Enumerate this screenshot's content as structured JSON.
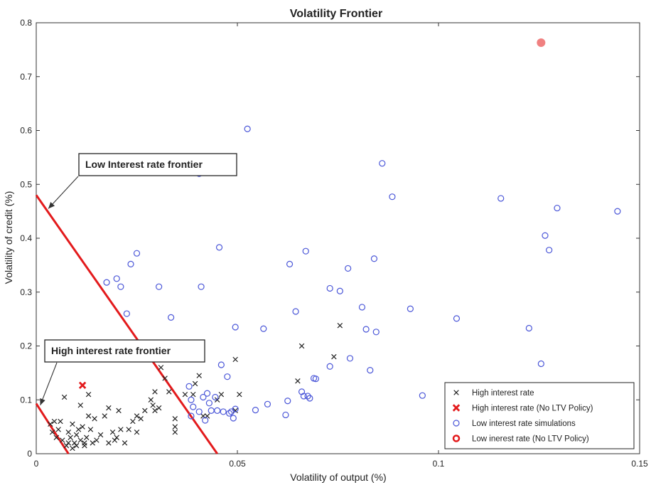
{
  "chart_data": {
    "type": "scatter",
    "title": "Volatility Frontier",
    "xlabel": "Volatility of output (%)",
    "ylabel": "Volatility of credit (%)",
    "xlim": [
      0,
      0.15
    ],
    "ylim": [
      0,
      0.8
    ],
    "xticks": [
      0,
      0.05,
      0.1,
      0.15
    ],
    "xtick_labels": [
      "0",
      "0.05",
      "0.1",
      "0.15"
    ],
    "yticks": [
      0,
      0.1,
      0.2,
      0.3,
      0.4,
      0.5,
      0.6,
      0.7,
      0.8
    ],
    "ytick_labels": [
      "0",
      "0.1",
      "0.2",
      "0.3",
      "0.4",
      "0.5",
      "0.6",
      "0.7",
      "0.8"
    ],
    "grid": false,
    "legend_position": "bottom-right",
    "series": [
      {
        "name": "High interest rate",
        "marker": "x",
        "color": "#222222",
        "points": [
          [
            0.0035,
            0.055
          ],
          [
            0.004,
            0.04
          ],
          [
            0.0045,
            0.06
          ],
          [
            0.005,
            0.03
          ],
          [
            0.0055,
            0.045
          ],
          [
            0.006,
            0.06
          ],
          [
            0.0065,
            0.025
          ],
          [
            0.007,
            0.105
          ],
          [
            0.0075,
            0.015
          ],
          [
            0.008,
            0.04
          ],
          [
            0.008,
            0.02
          ],
          [
            0.0085,
            0.03
          ],
          [
            0.009,
            0.01
          ],
          [
            0.009,
            0.055
          ],
          [
            0.0095,
            0.02
          ],
          [
            0.01,
            0.035
          ],
          [
            0.01,
            0.015
          ],
          [
            0.0105,
            0.045
          ],
          [
            0.011,
            0.025
          ],
          [
            0.011,
            0.09
          ],
          [
            0.0115,
            0.05
          ],
          [
            0.012,
            0.015
          ],
          [
            0.012,
            0.02
          ],
          [
            0.0125,
            0.03
          ],
          [
            0.013,
            0.07
          ],
          [
            0.013,
            0.11
          ],
          [
            0.0135,
            0.045
          ],
          [
            0.014,
            0.02
          ],
          [
            0.0145,
            0.065
          ],
          [
            0.015,
            0.025
          ],
          [
            0.016,
            0.035
          ],
          [
            0.017,
            0.07
          ],
          [
            0.018,
            0.085
          ],
          [
            0.018,
            0.02
          ],
          [
            0.019,
            0.04
          ],
          [
            0.0195,
            0.025
          ],
          [
            0.02,
            0.03
          ],
          [
            0.0205,
            0.08
          ],
          [
            0.021,
            0.045
          ],
          [
            0.022,
            0.02
          ],
          [
            0.023,
            0.045
          ],
          [
            0.024,
            0.06
          ],
          [
            0.025,
            0.04
          ],
          [
            0.025,
            0.07
          ],
          [
            0.026,
            0.065
          ],
          [
            0.027,
            0.08
          ],
          [
            0.0285,
            0.1
          ],
          [
            0.029,
            0.09
          ],
          [
            0.0295,
            0.08
          ],
          [
            0.0305,
            0.085
          ],
          [
            0.031,
            0.16
          ],
          [
            0.032,
            0.14
          ],
          [
            0.033,
            0.115
          ],
          [
            0.0295,
            0.115
          ],
          [
            0.0345,
            0.065
          ],
          [
            0.0345,
            0.05
          ],
          [
            0.0345,
            0.04
          ],
          [
            0.037,
            0.11
          ],
          [
            0.039,
            0.11
          ],
          [
            0.0395,
            0.13
          ],
          [
            0.0405,
            0.145
          ],
          [
            0.0415,
            0.07
          ],
          [
            0.0425,
            0.07
          ],
          [
            0.045,
            0.1
          ],
          [
            0.046,
            0.11
          ],
          [
            0.0495,
            0.175
          ],
          [
            0.0505,
            0.11
          ],
          [
            0.0495,
            0.08
          ],
          [
            0.066,
            0.2
          ],
          [
            0.065,
            0.135
          ],
          [
            0.074,
            0.18
          ],
          [
            0.0755,
            0.238
          ]
        ]
      },
      {
        "name": "High interest rate (No LTV Policy)",
        "marker": "x-bold",
        "color": "#e31a1c",
        "points": [
          [
            0.0115,
            0.127
          ]
        ]
      },
      {
        "name": "Low interest rate simulations",
        "marker": "o",
        "color": "#4a56d8",
        "points": [
          [
            0.0175,
            0.318
          ],
          [
            0.02,
            0.325
          ],
          [
            0.021,
            0.31
          ],
          [
            0.0225,
            0.26
          ],
          [
            0.0235,
            0.352
          ],
          [
            0.025,
            0.372
          ],
          [
            0.0305,
            0.31
          ],
          [
            0.0335,
            0.253
          ],
          [
            0.0385,
            0.197
          ],
          [
            0.0405,
            0.52
          ],
          [
            0.041,
            0.31
          ],
          [
            0.0455,
            0.383
          ],
          [
            0.0525,
            0.603
          ],
          [
            0.0385,
            0.1
          ],
          [
            0.038,
            0.125
          ],
          [
            0.039,
            0.087
          ],
          [
            0.0385,
            0.07
          ],
          [
            0.0405,
            0.078
          ],
          [
            0.0415,
            0.105
          ],
          [
            0.042,
            0.062
          ],
          [
            0.0425,
            0.112
          ],
          [
            0.043,
            0.094
          ],
          [
            0.0435,
            0.08
          ],
          [
            0.0445,
            0.105
          ],
          [
            0.045,
            0.08
          ],
          [
            0.046,
            0.165
          ],
          [
            0.0465,
            0.078
          ],
          [
            0.0475,
            0.143
          ],
          [
            0.048,
            0.075
          ],
          [
            0.049,
            0.066
          ],
          [
            0.0485,
            0.078
          ],
          [
            0.0495,
            0.235
          ],
          [
            0.0495,
            0.083
          ],
          [
            0.0545,
            0.081
          ],
          [
            0.0565,
            0.232
          ],
          [
            0.0575,
            0.092
          ],
          [
            0.062,
            0.072
          ],
          [
            0.0625,
            0.098
          ],
          [
            0.063,
            0.352
          ],
          [
            0.0645,
            0.264
          ],
          [
            0.066,
            0.115
          ],
          [
            0.0665,
            0.107
          ],
          [
            0.067,
            0.376
          ],
          [
            0.0675,
            0.107
          ],
          [
            0.068,
            0.103
          ],
          [
            0.069,
            0.14
          ],
          [
            0.0695,
            0.139
          ],
          [
            0.073,
            0.307
          ],
          [
            0.073,
            0.162
          ],
          [
            0.0755,
            0.302
          ],
          [
            0.0775,
            0.344
          ],
          [
            0.078,
            0.177
          ],
          [
            0.081,
            0.272
          ],
          [
            0.082,
            0.231
          ],
          [
            0.083,
            0.155
          ],
          [
            0.084,
            0.362
          ],
          [
            0.0845,
            0.226
          ],
          [
            0.086,
            0.539
          ],
          [
            0.0885,
            0.477
          ],
          [
            0.093,
            0.269
          ],
          [
            0.096,
            0.108
          ],
          [
            0.1045,
            0.251
          ],
          [
            0.1155,
            0.474
          ],
          [
            0.1225,
            0.233
          ],
          [
            0.1255,
            0.167
          ],
          [
            0.1265,
            0.405
          ],
          [
            0.1275,
            0.378
          ],
          [
            0.1295,
            0.456
          ],
          [
            0.1445,
            0.45
          ]
        ]
      },
      {
        "name": "Low inerest rate (No LTV Policy)",
        "marker": "o-bold",
        "color": "#e31a1c",
        "points": [
          [
            0.1255,
            0.763
          ]
        ]
      }
    ],
    "frontiers": [
      {
        "label": "Low Interest rate frontier",
        "color": "#e31a1c",
        "line": [
          [
            0,
            0.48
          ],
          [
            0.045,
            0
          ]
        ],
        "arrow_to": [
          0.003,
          0.455
        ]
      },
      {
        "label": "High interest rate frontier",
        "color": "#e31a1c",
        "line": [
          [
            0,
            0.093
          ],
          [
            0.008,
            0
          ]
        ],
        "arrow_to": [
          0.001,
          0.09
        ]
      }
    ]
  }
}
